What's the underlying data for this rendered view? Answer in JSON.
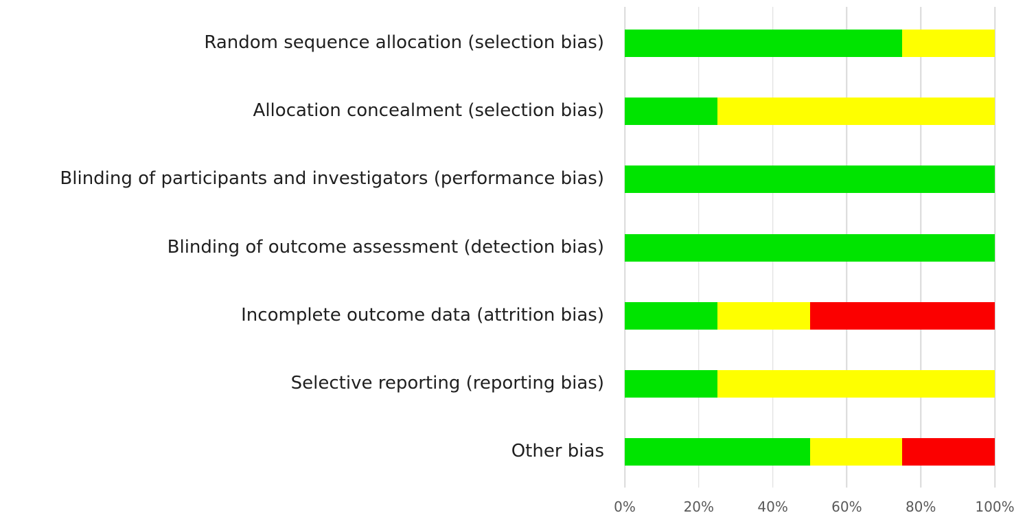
{
  "chart_data": {
    "type": "bar",
    "orientation": "horizontal",
    "stacked": true,
    "unit": "%",
    "title": "",
    "xlabel": "",
    "ylabel": "",
    "grid": true,
    "legend": "none",
    "x_axis": {
      "min": 0,
      "max": 100,
      "tick_values": [
        0,
        20,
        40,
        60,
        80,
        100
      ],
      "tick_labels": [
        "0%",
        "20%",
        "40%",
        "60%",
        "80%",
        "100%"
      ]
    },
    "categories": [
      "Random sequence allocation (selection bias)",
      "Allocation concealment (selection bias)",
      "Blinding of participants and investigators (performance bias)",
      "Blinding of outcome assessment (detection bias)",
      "Incomplete outcome data (attrition bias)",
      "Selective reporting (reporting bias)",
      "Other bias"
    ],
    "series": [
      {
        "name": "green",
        "color": "#00e400",
        "values": [
          75,
          25,
          100,
          100,
          25,
          25,
          50
        ]
      },
      {
        "name": "yellow",
        "color": "#feff00",
        "values": [
          25,
          75,
          0,
          0,
          25,
          75,
          25
        ]
      },
      {
        "name": "red",
        "color": "#fb0000",
        "values": [
          0,
          0,
          0,
          0,
          50,
          0,
          25
        ]
      }
    ]
  },
  "colors": {
    "gridline": "#d9d9d9",
    "axis_text": "#595959",
    "label_text": "#1f1f1f",
    "background": "#ffffff"
  }
}
